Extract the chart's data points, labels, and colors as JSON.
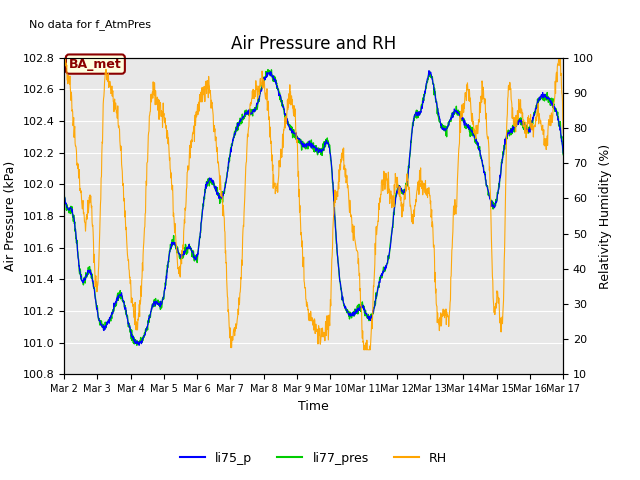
{
  "title": "Air Pressure and RH",
  "no_data_text": "No data for f_AtmPres",
  "ba_met_label": "BA_met",
  "xlabel": "Time",
  "ylabel_left": "Air Pressure (kPa)",
  "ylabel_right": "Relativity Humidity (%)",
  "ylim_left": [
    100.8,
    102.8
  ],
  "ylim_right": [
    10,
    100
  ],
  "yticks_left": [
    100.8,
    101.0,
    101.2,
    101.4,
    101.6,
    101.8,
    102.0,
    102.2,
    102.4,
    102.6,
    102.8
  ],
  "yticks_right": [
    10,
    20,
    30,
    40,
    50,
    60,
    70,
    80,
    90,
    100
  ],
  "xtick_labels": [
    "Mar 2",
    "Mar 3",
    "Mar 4",
    "Mar 5",
    "Mar 6",
    "Mar 7",
    "Mar 8",
    "Mar 9",
    "Mar 10",
    "Mar 11",
    "Mar 12",
    "Mar 13",
    "Mar 14",
    "Mar 15",
    "Mar 16",
    "Mar 17"
  ],
  "color_li75": "#0000FF",
  "color_li77": "#00CC00",
  "color_rh": "#FFA500",
  "legend_labels": [
    "li75_p",
    "li77_pres",
    "RH"
  ],
  "background_color": "#E8E8E8",
  "title_fontsize": 12,
  "axis_label_fontsize": 9,
  "tick_fontsize": 8,
  "legend_fontsize": 9
}
